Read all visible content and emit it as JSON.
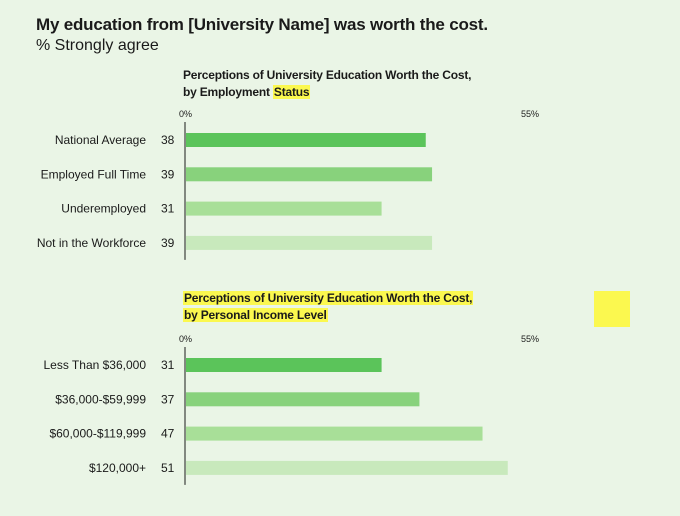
{
  "header": {
    "title": "My education from [University Name] was worth the cost.",
    "subtitle": "% Strongly agree"
  },
  "colors": {
    "background": "#eaf5e6",
    "highlight": "#fbf84f",
    "bar_shades": [
      "#5bc45a",
      "#88d27c",
      "#a8df98",
      "#c8e9bc"
    ]
  },
  "chart_data": [
    {
      "type": "bar",
      "orientation": "horizontal",
      "title_lines": [
        [
          {
            "text": "Perceptions of University Education Worth the Cost,",
            "highlight": false
          }
        ],
        [
          {
            "text": "by Employment ",
            "highlight": false
          },
          {
            "text": "Status",
            "highlight": true
          }
        ]
      ],
      "categories": [
        "National Average",
        "Employed Full Time",
        "Underemployed",
        "Not in the Workforce"
      ],
      "values": [
        38,
        39,
        31,
        39
      ],
      "xlim": [
        0,
        55
      ],
      "tick_labels": [
        "0%",
        "55%"
      ],
      "grid": false
    },
    {
      "type": "bar",
      "orientation": "horizontal",
      "title_lines": [
        [
          {
            "text": "Perceptions of University Education Worth the Cost,",
            "highlight": true
          }
        ],
        [
          {
            "text": "by Personal Income Level",
            "highlight": true
          }
        ]
      ],
      "categories": [
        "Less Than $36,000",
        "$36,000-$59,999",
        "$60,000-$119,999",
        "$120,000+"
      ],
      "values": [
        31,
        37,
        47,
        51
      ],
      "xlim": [
        0,
        55
      ],
      "tick_labels": [
        "0%",
        "55%"
      ],
      "grid": false
    }
  ]
}
